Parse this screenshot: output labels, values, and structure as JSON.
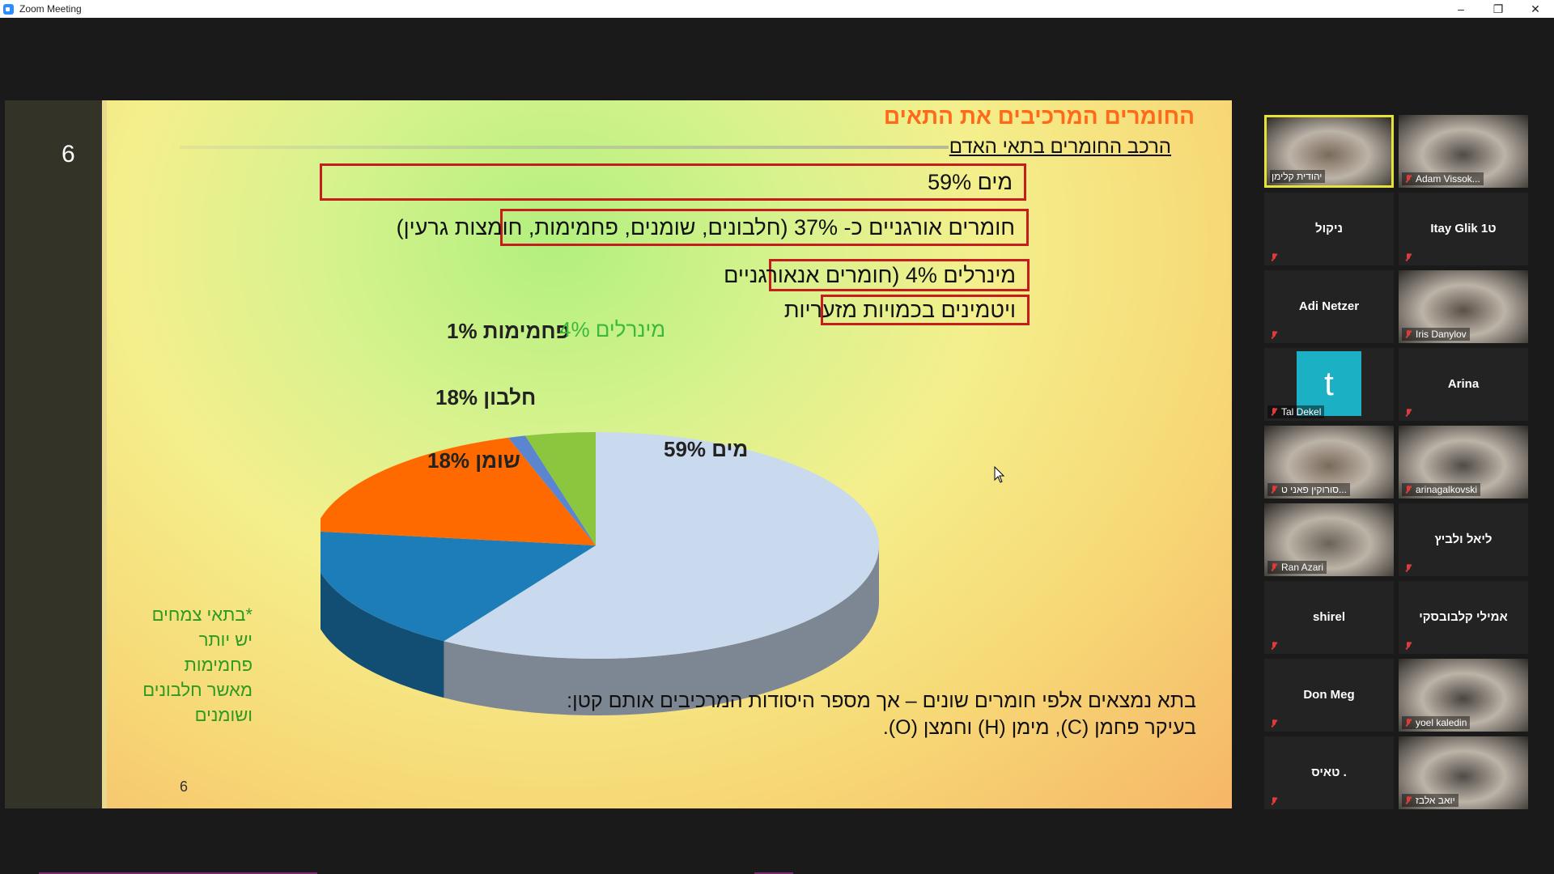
{
  "window": {
    "title": "Zoom Meeting",
    "controls": {
      "minimize": "–",
      "restore": "❐",
      "close": "✕"
    }
  },
  "slide": {
    "sidebar_number": "6",
    "title": "החומרים המרכיבים את התאים",
    "subtitle": "הרכב החומרים בתאי האדם",
    "boxes": [
      "מים 59%",
      "חומרים אורגניים כ- 37% (חלבונים, שומנים, פחמימות, חומצות גרעין)",
      "מינרלים 4% (חומרים אנאורגניים",
      "ויטמינים בכמויות מזעריות"
    ],
    "note_lines": [
      "*בתאי צמחים",
      "יש יותר",
      "פחמימות",
      "מאשר חלבונים",
      "ושומנים"
    ],
    "bottom_lines": [
      "בתא נמצאים אלפי חומרים שונים – אך מספר היסודות המרכיבים אותם קטן:",
      "בעיקר פחמן (C), מימן (H) וחמצן (O)."
    ],
    "footer_number": "6"
  },
  "chart_data": {
    "type": "pie",
    "title": "",
    "slices": [
      {
        "label": "מים 59%",
        "value": 59,
        "color": "#c9d9ee"
      },
      {
        "label": "שומן 18%",
        "value": 18,
        "color": "#1d7db9"
      },
      {
        "label": "חלבון 18%",
        "value": 18,
        "color": "#ff6a00"
      },
      {
        "label": "פחמימות 1%",
        "value": 1,
        "color": "#5b86cf"
      },
      {
        "label": "מינרלים 4%",
        "value": 4,
        "color": "#8cc63f"
      }
    ]
  },
  "participants": [
    {
      "name": "יהודית קלימן",
      "video": true,
      "active": true,
      "muted": false
    },
    {
      "name": "Adam Vissok...",
      "video": true,
      "active": false,
      "muted": true
    },
    {
      "name": "ניקול",
      "video": false,
      "muted": true
    },
    {
      "name": "Itay Glik ט1",
      "video": false,
      "muted": true
    },
    {
      "name": "Adi Netzer",
      "video": false,
      "muted": true
    },
    {
      "name": "Iris Danylov",
      "video": true,
      "muted": true
    },
    {
      "name": "Tal Dekel",
      "video": false,
      "avatar_letter": "t",
      "muted": true
    },
    {
      "name": "Arina",
      "video": false,
      "muted": true
    },
    {
      "name": "סורוקין פאני ט...",
      "video": true,
      "muted": true
    },
    {
      "name": "arinagalkovski",
      "video": true,
      "muted": true
    },
    {
      "name": "Ran Azari",
      "video": true,
      "muted": true
    },
    {
      "name": "ליאל ולביץ",
      "video": false,
      "muted": true
    },
    {
      "name": "shirel",
      "video": false,
      "muted": true
    },
    {
      "name": "אמילי קלבובסקי",
      "video": false,
      "muted": true
    },
    {
      "name": "Don Meg",
      "video": false,
      "muted": true
    },
    {
      "name": "yoel kaledin",
      "video": true,
      "muted": true
    },
    {
      "name": "טאיס .",
      "video": false,
      "muted": true
    },
    {
      "name": "יואב אלבז",
      "video": true,
      "muted": true
    }
  ]
}
